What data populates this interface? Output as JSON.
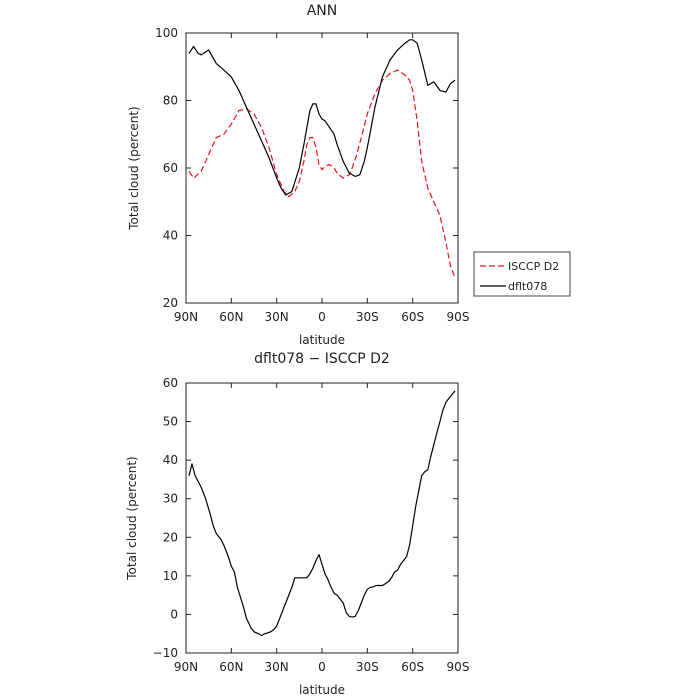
{
  "chart_data": [
    {
      "type": "line",
      "title": "ANN",
      "xlabel": "latitude",
      "ylabel": "Total cloud (percent)",
      "xlim": [
        90,
        -90
      ],
      "ylim": [
        20,
        100
      ],
      "xtick_values": [
        90,
        60,
        30,
        0,
        -30,
        -60,
        -90
      ],
      "xtick_labels": [
        "90N",
        "60N",
        "30N",
        "0",
        "30S",
        "60S",
        "90S"
      ],
      "ytick_values": [
        20,
        40,
        60,
        80,
        100
      ],
      "ytick_labels": [
        "20",
        "40",
        "60",
        "80",
        "100"
      ],
      "legend_position": "right",
      "series": [
        {
          "name": "ISCCP D2",
          "color": "#e8161b",
          "dash": "dashed",
          "x": [
            88,
            85,
            80,
            75,
            70,
            65,
            60,
            55,
            50,
            45,
            40,
            35,
            30,
            27,
            25,
            22,
            18,
            15,
            12,
            10,
            8,
            6,
            4,
            2,
            0,
            -2,
            -5,
            -8,
            -10,
            -14,
            -18,
            -20,
            -23,
            -26,
            -30,
            -35,
            -40,
            -45,
            -50,
            -55,
            -58,
            -60,
            -63,
            -66,
            -70,
            -74,
            -78,
            -82,
            -85,
            -88
          ],
          "y": [
            59,
            57,
            59,
            64,
            69,
            70,
            73,
            77,
            77.5,
            76,
            72,
            66,
            58,
            55,
            53,
            51.5,
            53,
            56,
            62,
            67,
            69,
            69,
            66,
            61,
            59.5,
            60.5,
            61,
            60,
            58.5,
            57,
            58,
            60,
            64,
            69,
            76,
            82,
            86,
            88,
            89,
            87.5,
            86,
            83,
            74,
            62,
            54,
            50,
            46,
            38,
            31,
            27.5
          ]
        },
        {
          "name": "dflt078",
          "color": "#000000",
          "dash": "solid",
          "x": [
            88,
            85,
            82,
            80,
            75,
            70,
            65,
            60,
            55,
            50,
            45,
            40,
            35,
            30,
            27,
            24,
            20,
            15,
            12,
            10,
            8,
            6,
            4,
            2,
            0,
            -2,
            -5,
            -8,
            -10,
            -14,
            -18,
            -22,
            -25,
            -28,
            -30,
            -35,
            -40,
            -45,
            -50,
            -55,
            -58,
            -60,
            -63,
            -66,
            -70,
            -74,
            -78,
            -82,
            -85,
            -88
          ],
          "y": [
            94,
            96,
            94,
            93.5,
            95,
            91,
            89,
            87,
            83,
            78,
            73,
            68,
            63,
            57,
            54,
            52,
            53,
            60,
            67,
            72,
            77,
            79,
            79,
            76,
            74.5,
            74,
            72,
            70,
            67,
            62,
            58.5,
            57.5,
            58,
            62,
            66,
            78,
            87,
            92,
            95,
            97,
            98,
            98,
            97,
            92,
            84.5,
            85.5,
            83,
            82.5,
            85,
            86
          ]
        }
      ]
    },
    {
      "type": "line",
      "title": "dflt078 − ISCCP D2",
      "xlabel": "latitude",
      "ylabel": "Total cloud (percent)",
      "xlim": [
        90,
        -90
      ],
      "ylim": [
        -10,
        60
      ],
      "xtick_values": [
        90,
        60,
        30,
        0,
        -30,
        -60,
        -90
      ],
      "xtick_labels": [
        "90N",
        "60N",
        "30N",
        "0",
        "30S",
        "60S",
        "90S"
      ],
      "ytick_values": [
        -10,
        0,
        10,
        20,
        30,
        40,
        50,
        60
      ],
      "ytick_labels": [
        "−10",
        "0",
        "10",
        "20",
        "30",
        "40",
        "50",
        "60"
      ],
      "series": [
        {
          "color": "#000000",
          "dash": "solid",
          "x": [
            88,
            86,
            84,
            82,
            80,
            77,
            74,
            72,
            70,
            67,
            65,
            62,
            60,
            58,
            56,
            54,
            52,
            50,
            47,
            45,
            42,
            40,
            38,
            36,
            34,
            32,
            30,
            28,
            26,
            24,
            22,
            20,
            18,
            16,
            14,
            12,
            10,
            8,
            6,
            4,
            2,
            0,
            -2,
            -4,
            -6,
            -8,
            -10,
            -12,
            -14,
            -16,
            -18,
            -20,
            -22,
            -24,
            -26,
            -28,
            -30,
            -32,
            -34,
            -36,
            -38,
            -40,
            -42,
            -44,
            -46,
            -48,
            -50,
            -52,
            -54,
            -56,
            -58,
            -60,
            -62,
            -64,
            -66,
            -68,
            -70,
            -72,
            -74,
            -76,
            -78,
            -80,
            -82,
            -84,
            -86,
            -88
          ],
          "y": [
            36,
            39,
            36,
            34.5,
            33,
            30,
            26,
            23,
            21,
            19.5,
            18,
            15,
            12.5,
            11,
            7,
            4.5,
            2,
            -1,
            -3.5,
            -4.5,
            -5,
            -5.5,
            -5,
            -4.8,
            -4.5,
            -4,
            -3,
            -1,
            1,
            3,
            5,
            7,
            9.5,
            9.5,
            9.5,
            9.5,
            9.5,
            10.5,
            12,
            14,
            15.5,
            13,
            10.5,
            9,
            7,
            5.5,
            5,
            4,
            3,
            0.5,
            -0.5,
            -0.7,
            -0.5,
            1,
            3,
            5,
            6.5,
            7,
            7.2,
            7.5,
            7.5,
            7.5,
            8,
            8.5,
            9.5,
            11,
            11.5,
            13,
            14,
            15,
            18,
            23,
            28,
            32,
            36,
            37,
            37.5,
            41,
            44,
            47,
            50,
            53,
            55,
            56,
            57,
            58
          ]
        }
      ]
    }
  ]
}
